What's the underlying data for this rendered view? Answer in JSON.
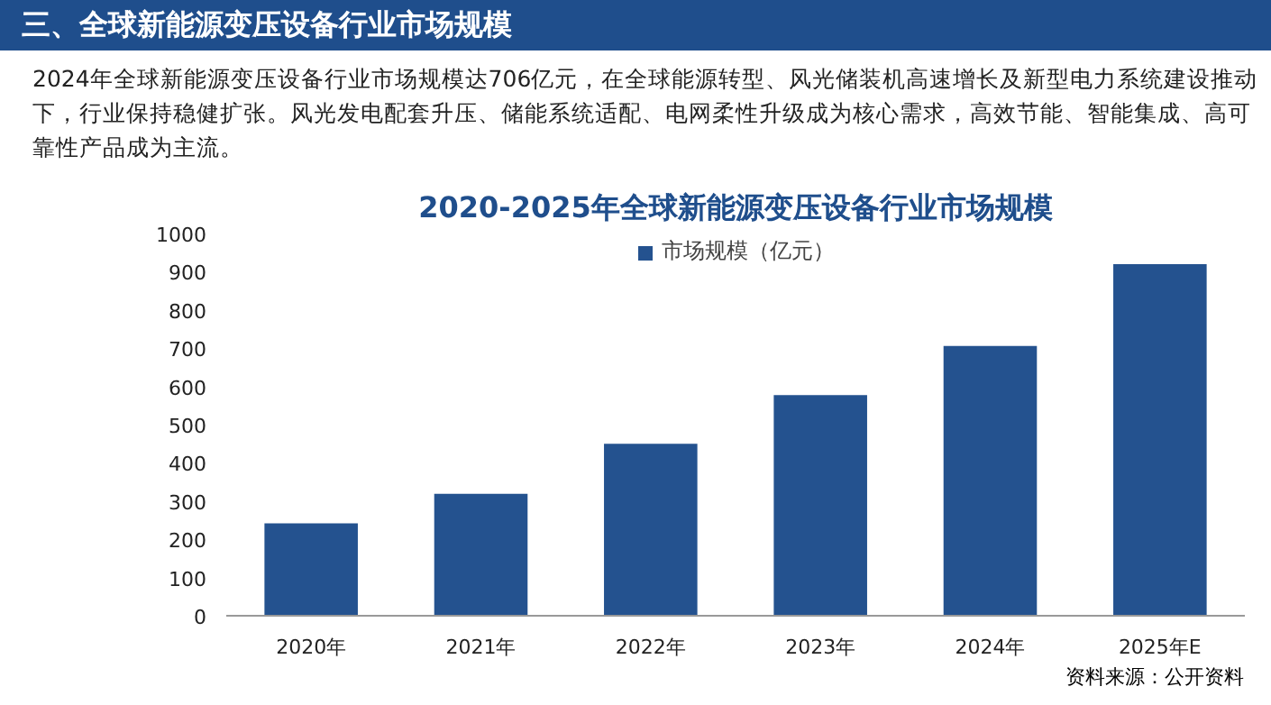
{
  "chart_data": {
    "type": "bar",
    "title": "2020-2025年全球新能源变压设备行业市场规模",
    "subtitle": "2024年全球新能源变压设备行业市场规模达706亿元，在全球能源转型、风光储装机高速增长及新型电力系统建设推动下，行业保持稳健扩张。风光发电配套升压、储能系统适配、电网柔性升级成为核心需求，高效节能、智能集成、高可靠性产品成为主流。",
    "annotations": [
      "三、全球新能源变压设备行业市场规模",
      "资料来源：公开资料"
    ],
    "categories": [
      "2020年",
      "2021年",
      "2022年",
      "2023年",
      "2024年",
      "2025年E"
    ],
    "series": [
      {
        "name": "市场规模（亿元）",
        "color": "#24528f",
        "values": [
          242,
          319,
          450,
          577,
          706,
          920
        ]
      }
    ],
    "ylim": [
      0,
      1000
    ],
    "yticks": [
      0,
      100,
      200,
      300,
      400,
      500,
      600,
      700,
      800,
      900,
      1000
    ],
    "legend": "top",
    "grid": false
  }
}
